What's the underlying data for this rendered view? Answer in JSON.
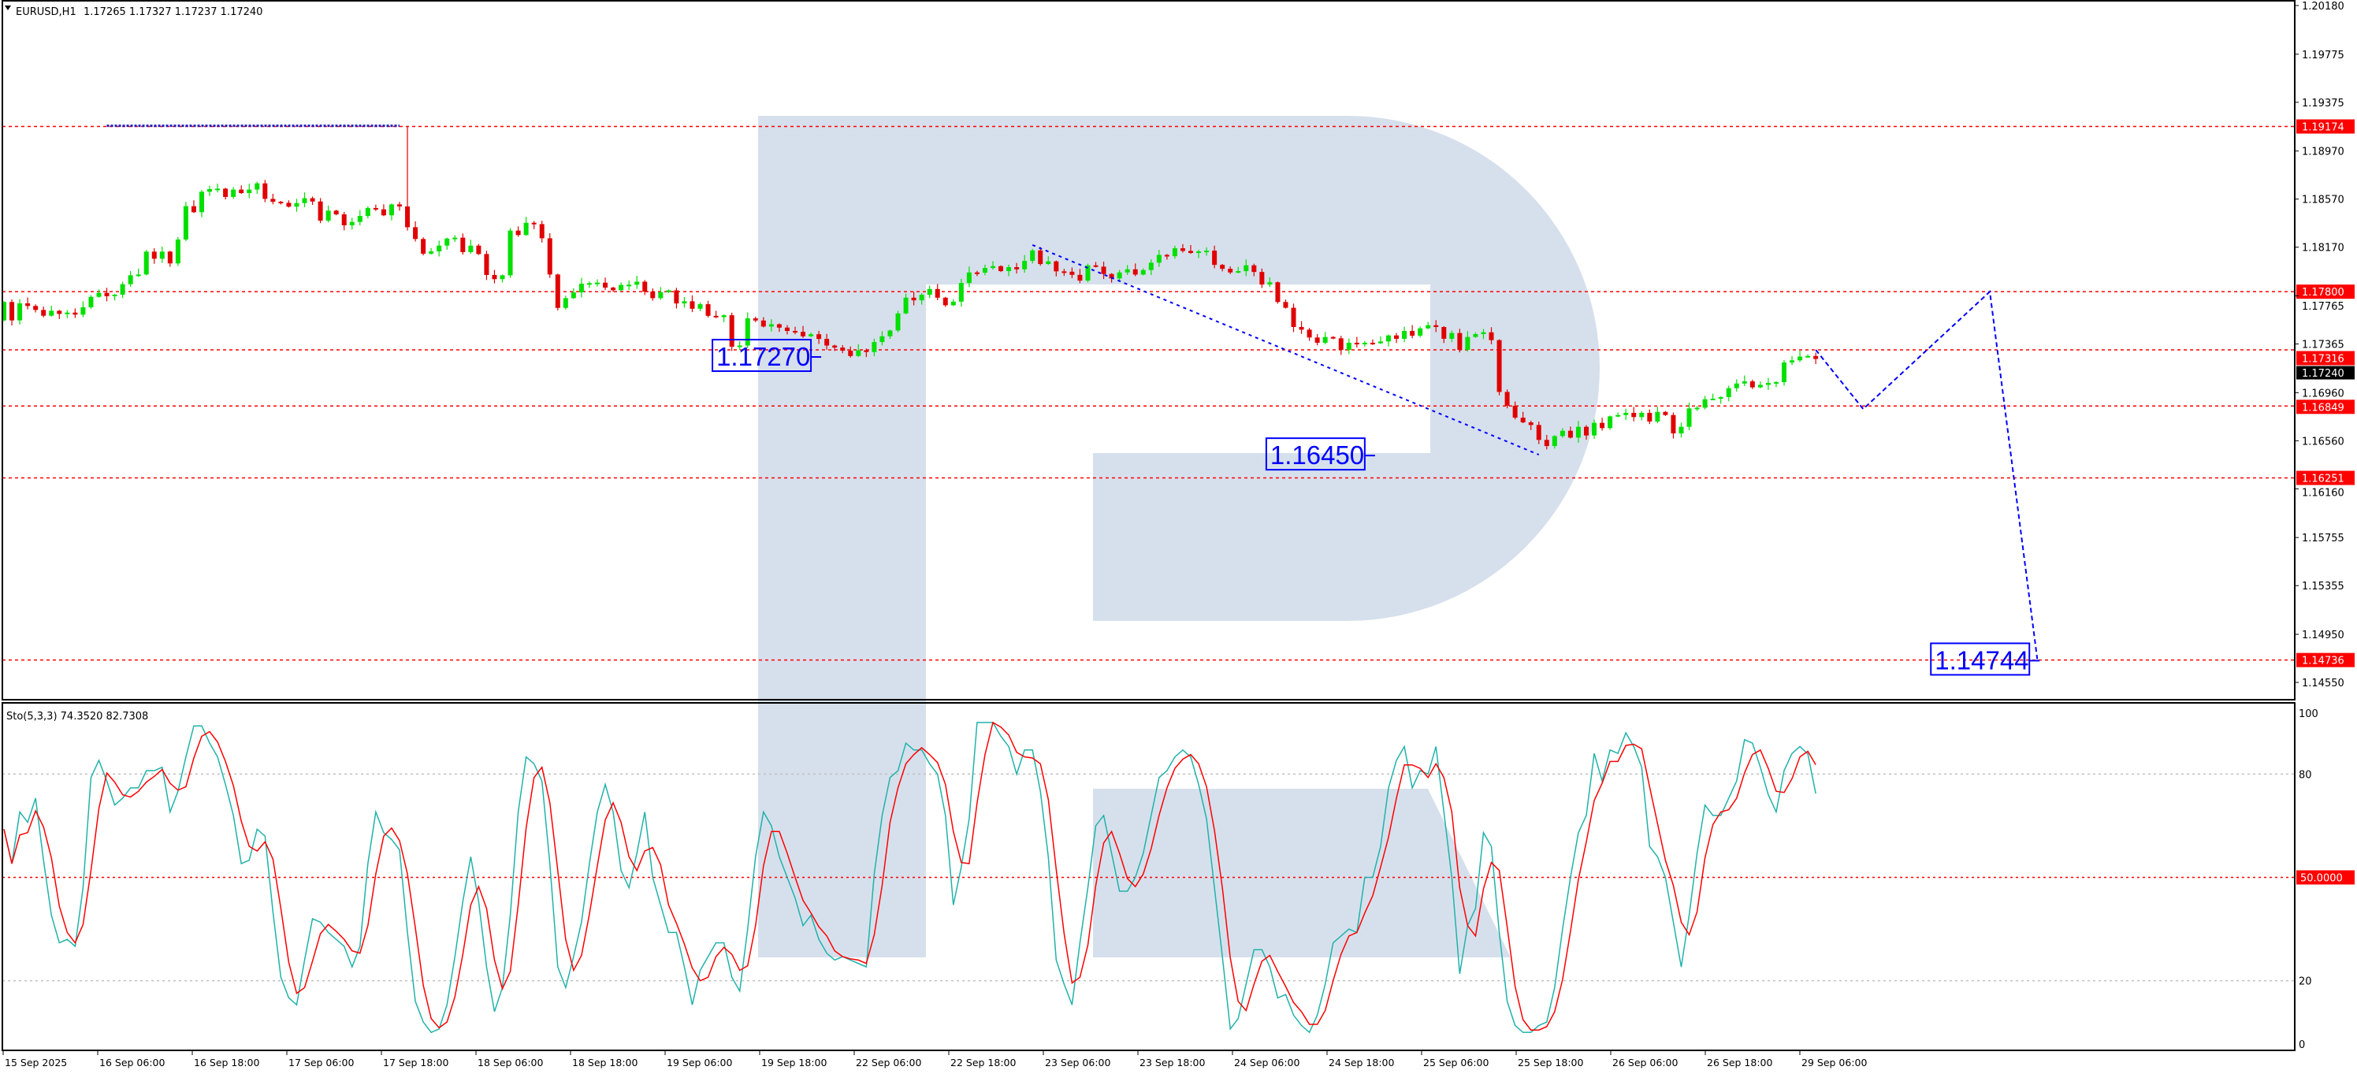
{
  "header": {
    "symbol": "EURUSD,H1",
    "ohlc": "1.17265 1.17327 1.17237 1.17240",
    "menu_icon": "triangle-down-icon"
  },
  "indicator": {
    "label": "Sto(5,3,3) 74.3520 82.7308",
    "k_color": "#20b2aa",
    "d_color": "#ff0000",
    "levels": [
      80,
      50,
      20
    ],
    "level_50_label": "50.0000",
    "axis_ticks": [
      "100",
      "80",
      "50",
      "20",
      "0"
    ],
    "axis_tick_values": [
      100,
      80,
      50,
      20,
      0
    ]
  },
  "colors": {
    "bull": "#00e000",
    "bear": "#e00000",
    "level_line": "#ff0000",
    "forecast": "#0000ff",
    "watermark": "#d6e0ec"
  },
  "chart_data": {
    "type": "candlestick",
    "symbol": "EURUSD",
    "timeframe": "H1",
    "ylim": [
      1.14406,
      1.20226
    ],
    "price_ticks": [
      "1.20180",
      "1.19775",
      "1.19375",
      "1.18970",
      "1.18570",
      "1.18170",
      "1.17765",
      "1.17365",
      "1.16960",
      "1.16560",
      "1.16160",
      "1.15755",
      "1.15355",
      "1.14950",
      "1.14550"
    ],
    "time_ticks": [
      "15 Sep 2025",
      "16 Sep 06:00",
      "16 Sep 18:00",
      "17 Sep 06:00",
      "17 Sep 18:00",
      "18 Sep 06:00",
      "18 Sep 18:00",
      "19 Sep 06:00",
      "19 Sep 18:00",
      "22 Sep 06:00",
      "22 Sep 18:00",
      "23 Sep 06:00",
      "23 Sep 18:00",
      "24 Sep 06:00",
      "24 Sep 18:00",
      "25 Sep 06:00",
      "25 Sep 18:00",
      "26 Sep 06:00",
      "26 Sep 18:00",
      "29 Sep 06:00"
    ],
    "horizontal_levels": [
      "1.19174",
      "1.17800",
      "1.17316",
      "1.16849",
      "1.16251",
      "1.14736"
    ],
    "current_price": "1.17240",
    "first_open": 1.17561,
    "wick_overrides": [
      {
        "index": 51,
        "high": 1.19174
      }
    ],
    "close": [
      1.17714,
      1.17561,
      1.17703,
      1.17681,
      1.17648,
      1.176,
      1.17641,
      1.17615,
      1.17626,
      1.17609,
      1.1767,
      1.17757,
      1.1779,
      1.17762,
      1.17775,
      1.17862,
      1.17936,
      1.17943,
      1.18133,
      1.18074,
      1.18133,
      1.18035,
      1.18234,
      1.18511,
      1.18461,
      1.18631,
      1.18653,
      1.18657,
      1.18588,
      1.18649,
      1.1862,
      1.18649,
      1.18701,
      1.18572,
      1.18548,
      1.18539,
      1.18507,
      1.18537,
      1.18577,
      1.1855,
      1.18391,
      1.18474,
      1.18443,
      1.18352,
      1.1838,
      1.1843,
      1.18496,
      1.18485,
      1.18435,
      1.18526,
      1.18509,
      1.18336,
      1.18238,
      1.18116,
      1.18135,
      1.18183,
      1.18242,
      1.18249,
      1.18129,
      1.18183,
      1.18113,
      1.17939,
      1.17904,
      1.17936,
      1.18308,
      1.18271,
      1.18373,
      1.18362,
      1.18244,
      1.17943,
      1.17665,
      1.17746,
      1.17794,
      1.17866,
      1.17871,
      1.17875,
      1.17834,
      1.17812,
      1.17856,
      1.17858,
      1.17883,
      1.178,
      1.17746,
      1.17796,
      1.17811,
      1.17702,
      1.1772,
      1.17658,
      1.17696,
      1.17599,
      1.17588,
      1.17604,
      1.17342,
      1.17352,
      1.17578,
      1.1756,
      1.1751,
      1.17529,
      1.17501,
      1.17473,
      1.17466,
      1.17429,
      1.17446,
      1.17407,
      1.17352,
      1.17335,
      1.17309,
      1.17265,
      1.17313,
      1.17298,
      1.17381,
      1.17429,
      1.17477,
      1.17619,
      1.1775,
      1.17728,
      1.17774,
      1.17822,
      1.1775,
      1.17687,
      1.17717,
      1.17872,
      1.1796,
      1.17958,
      1.17997,
      1.18012,
      1.17971,
      1.18004,
      1.17986,
      1.18056,
      1.18143,
      1.1803,
      1.18052,
      1.17969,
      1.17966,
      1.1794,
      1.17892,
      1.18019,
      1.18008,
      1.17947,
      1.1791,
      1.1796,
      1.17986,
      1.17942,
      1.1798,
      1.18041,
      1.18106,
      1.18095,
      1.18161,
      1.18139,
      1.18122,
      1.18135,
      1.18141,
      1.18023,
      1.1799,
      1.1796,
      1.17971,
      1.18019,
      1.17964,
      1.17859,
      1.17878,
      1.17714,
      1.17666,
      1.17506,
      1.17484,
      1.17419,
      1.17375,
      1.17423,
      1.17412,
      1.17316,
      1.17375,
      1.17364,
      1.17375,
      1.17371,
      1.17386,
      1.17436,
      1.17408,
      1.17473,
      1.17434,
      1.17495,
      1.17521,
      1.17506,
      1.17408,
      1.17456,
      1.17316,
      1.17423,
      1.17447,
      1.17462,
      1.17397,
      1.16966,
      1.16851,
      1.16752,
      1.16713,
      1.16691,
      1.16567,
      1.16516,
      1.16599,
      1.16643,
      1.16586,
      1.16676,
      1.16604,
      1.16709,
      1.16665,
      1.16763,
      1.16774,
      1.16792,
      1.16757,
      1.16792,
      1.1672,
      1.168,
      1.16774,
      1.16621,
      1.16676,
      1.16829,
      1.16835,
      1.16905,
      1.1691,
      1.16923,
      1.16997,
      1.17036,
      1.17054,
      1.17004,
      1.17025,
      1.17041,
      1.17048,
      1.17211,
      1.17229,
      1.1726,
      1.17265,
      1.1724
    ],
    "stoch_k": [
      64,
      54,
      69,
      66,
      73,
      55,
      39,
      31,
      32,
      30,
      47,
      79,
      84,
      78,
      71,
      73,
      76,
      76,
      81,
      81,
      82,
      69,
      75,
      85,
      94,
      94,
      89,
      85,
      77,
      68,
      54,
      55,
      64,
      62,
      40,
      21,
      15,
      13,
      26,
      38,
      37,
      34,
      32,
      30,
      24,
      30,
      54,
      69,
      63,
      61,
      58,
      34,
      14,
      8,
      5,
      6,
      13,
      27,
      43,
      56,
      43,
      24,
      11,
      18,
      39,
      69,
      85,
      83,
      78,
      54,
      24,
      18,
      27,
      37,
      54,
      69,
      77,
      69,
      52,
      47,
      57,
      69,
      50,
      42,
      34,
      34,
      24,
      13,
      23,
      27,
      31,
      31,
      21,
      17,
      35,
      56,
      69,
      65,
      56,
      50,
      44,
      36,
      39,
      32,
      28,
      26,
      27,
      26,
      25,
      24,
      51,
      68,
      79,
      81,
      89,
      87,
      87,
      83,
      80,
      68,
      42,
      53,
      67,
      95,
      95,
      95,
      91,
      88,
      80,
      87,
      87,
      75,
      56,
      26,
      19,
      13,
      31,
      47,
      65,
      68,
      57,
      46,
      46,
      50,
      57,
      68,
      79,
      81,
      85,
      87,
      85,
      77,
      67,
      47,
      27,
      6,
      9,
      19,
      29,
      29,
      24,
      15,
      16,
      10,
      7,
      5,
      10,
      19,
      31,
      33,
      35,
      34,
      50,
      50,
      59,
      76,
      84,
      88,
      76,
      81,
      80,
      88,
      69,
      50,
      22,
      36,
      41,
      63,
      59,
      34,
      14,
      7,
      5,
      5,
      7,
      8,
      18,
      35,
      50,
      63,
      68,
      86,
      78,
      87,
      86,
      92,
      88,
      82,
      59,
      56,
      50,
      37,
      24,
      39,
      57,
      71,
      68,
      68,
      73,
      78,
      90,
      89,
      82,
      74,
      69,
      81,
      86,
      88,
      85.84,
      74.352
    ],
    "trend_line": [
      {
        "index": 130,
        "price": 1.18188
      },
      {
        "index": 194,
        "price": 1.16444
      }
    ],
    "top_line": [
      {
        "index": 13,
        "price": 1.1918
      },
      {
        "index": 50,
        "price": 1.1918
      }
    ],
    "forecast_path": [
      {
        "index": 229,
        "price": 1.17316
      },
      {
        "index": 235,
        "price": 1.16824
      },
      {
        "index": 251,
        "price": 1.178
      },
      {
        "index": 257,
        "price": 1.14744
      }
    ],
    "annotations": [
      {
        "text": "1.17270",
        "index": 102,
        "price": 1.1727
      },
      {
        "text": "1.16450",
        "index": 172,
        "price": 1.1645
      },
      {
        "text": "1.14744",
        "index": 256,
        "price": 1.14744
      }
    ]
  }
}
